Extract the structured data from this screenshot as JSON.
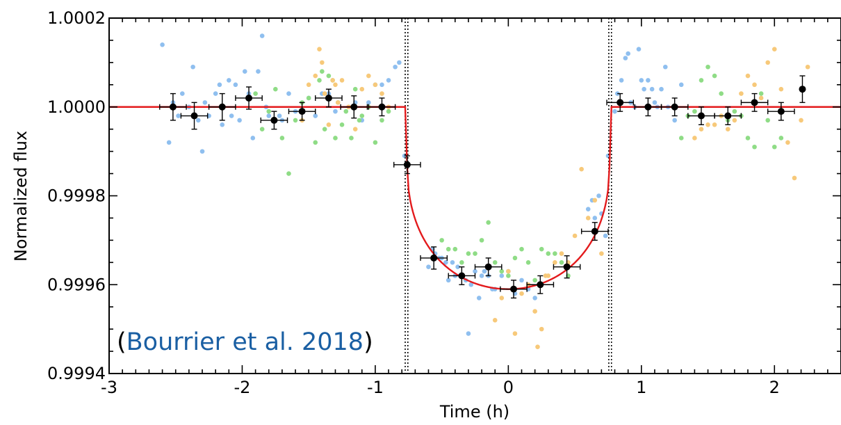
{
  "chart_data": {
    "type": "scatter",
    "title": "",
    "xlabel": "Time (h)",
    "ylabel": "Normalized flux",
    "xlim": [
      -3,
      2.5
    ],
    "ylim": [
      0.9994,
      1.0002
    ],
    "x_ticks": [
      -3,
      -2,
      -1,
      0,
      1,
      2
    ],
    "x_tick_labels": [
      "-3",
      "-2",
      "-1",
      "0",
      "1",
      "2"
    ],
    "y_ticks": [
      0.9994,
      0.9996,
      0.9998,
      1.0
    ],
    "y_tick_labels": [
      "0.9994",
      "0.9996",
      "0.9998",
      "1.0000"
    ],
    "y_top_label": "1.0002",
    "grid": false,
    "legend": "none",
    "annotation": {
      "open": "(",
      "text": "Bourrier et al. 2018",
      "close": ")",
      "text_color": "#1a5fa3"
    },
    "contact_lines_x": [
      -0.775,
      -0.755,
      0.755,
      0.775
    ],
    "model": {
      "color": "#e31a1c",
      "baseline": 1.0,
      "ingress_start": -0.775,
      "ingress_end": -0.76,
      "egress_start": 0.76,
      "egress_end": 0.775,
      "min": 0.99959
    },
    "series": [
      {
        "role": "raw-visit-1",
        "color": "#8fbfef",
        "x": [
          -2.6,
          -2.55,
          -2.52,
          -2.48,
          -2.45,
          -2.4,
          -2.37,
          -2.33,
          -2.3,
          -2.28,
          -2.25,
          -2.2,
          -2.17,
          -2.15,
          -2.1,
          -2.08,
          -2.05,
          -2.02,
          -1.98,
          -1.95,
          -1.92,
          -1.88,
          -1.85,
          -1.82,
          -1.8,
          -1.75,
          -1.72,
          -1.7,
          -1.65,
          -1.6,
          -1.5,
          -1.45,
          -1.4,
          -1.35,
          -1.3,
          -1.2,
          -1.15,
          -1.1,
          -1.05,
          -1.0,
          -0.95,
          -0.9,
          -0.85,
          -0.82,
          -0.78,
          -0.6,
          -0.57,
          -0.55,
          -0.52,
          -0.5,
          -0.47,
          -0.45,
          -0.42,
          -0.4,
          -0.38,
          -0.35,
          -0.32,
          -0.3,
          -0.28,
          -0.25,
          -0.22,
          -0.2,
          -0.18,
          -0.15,
          -0.12,
          -0.1,
          -0.05,
          0.0,
          0.05,
          0.1,
          0.15,
          0.2,
          0.6,
          0.63,
          0.65,
          0.68,
          0.7,
          0.73,
          0.75,
          0.8,
          0.82,
          0.85,
          0.88,
          0.9,
          0.92,
          0.95,
          0.98,
          1.0,
          1.02,
          1.05,
          1.08,
          1.1,
          1.12,
          1.15,
          1.18,
          1.2,
          1.25,
          1.3
        ],
        "y": [
          1.00014,
          0.99992,
          1.00001,
          0.99998,
          1.00003,
          1.0,
          1.00009,
          0.99997,
          0.9999,
          1.00001,
          0.99998,
          1.00003,
          1.00005,
          0.99996,
          1.00006,
          0.99998,
          1.00005,
          0.99997,
          1.00008,
          1.00003,
          0.99993,
          1.00008,
          1.00016,
          1.0,
          0.99998,
          0.99997,
          0.99998,
          0.99997,
          1.00003,
          0.99999,
          1.00002,
          0.99998,
          1.00003,
          1.00003,
          0.99999,
          1.0,
          1.00001,
          0.99997,
          1.00001,
          1.00005,
          1.00005,
          1.00006,
          1.00009,
          1.0001,
          0.99989,
          0.99964,
          0.99968,
          0.99967,
          0.99966,
          0.99966,
          0.99965,
          0.99961,
          0.99965,
          0.99962,
          0.99964,
          0.99962,
          0.99961,
          0.99949,
          0.9996,
          0.99963,
          0.99957,
          0.99962,
          0.99963,
          0.99962,
          0.99959,
          0.99959,
          0.99962,
          0.99963,
          0.99958,
          0.99961,
          0.99959,
          0.99957,
          0.99977,
          0.99979,
          0.99975,
          0.9998,
          0.99976,
          0.99971,
          0.99989,
          0.99999,
          1.00003,
          1.00006,
          1.00011,
          1.00012,
          1.00001,
          1.0,
          1.00013,
          1.00006,
          1.00004,
          1.00006,
          1.00004,
          1.00001,
          1.0,
          1.00004,
          1.00009,
          1.0,
          0.99997,
          1.00005
        ]
      },
      {
        "role": "raw-visit-2",
        "color": "#8fdc86",
        "x": [
          -1.9,
          -1.85,
          -1.8,
          -1.75,
          -1.7,
          -1.65,
          -1.6,
          -1.55,
          -1.5,
          -1.45,
          -1.42,
          -1.4,
          -1.38,
          -1.35,
          -1.32,
          -1.3,
          -1.28,
          -1.25,
          -1.22,
          -1.2,
          -1.18,
          -1.15,
          -1.12,
          -1.1,
          -1.05,
          -1.0,
          -0.95,
          -0.9,
          -0.55,
          -0.5,
          -0.45,
          -0.4,
          -0.35,
          -0.3,
          -0.25,
          -0.2,
          -0.15,
          -0.1,
          -0.05,
          0.0,
          0.05,
          0.1,
          0.15,
          0.2,
          0.25,
          0.3,
          0.35,
          0.4,
          0.45,
          1.3,
          1.35,
          1.4,
          1.45,
          1.5,
          1.55,
          1.6,
          1.65,
          1.7,
          1.75,
          1.8,
          1.85,
          1.9,
          1.95,
          2.0,
          2.05
        ],
        "y": [
          1.00003,
          0.99995,
          0.99999,
          1.00004,
          0.99993,
          0.99985,
          0.99997,
          1.00001,
          1.00002,
          0.99992,
          1.00006,
          1.00008,
          0.99995,
          1.00007,
          1.00006,
          0.99993,
          1.00001,
          0.99996,
          0.99999,
          1.0,
          0.99993,
          1.00004,
          0.99997,
          0.99998,
          1.0,
          0.99992,
          0.99997,
          0.99999,
          0.99966,
          0.9997,
          0.99968,
          0.99968,
          0.99965,
          0.99967,
          0.99967,
          0.9997,
          0.99974,
          0.99965,
          0.99963,
          0.99962,
          0.99966,
          0.99968,
          0.99965,
          0.99961,
          0.99968,
          0.99967,
          0.99967,
          0.99965,
          0.99962,
          0.99993,
          0.99998,
          0.99999,
          1.00006,
          1.00009,
          1.00007,
          1.00003,
          0.99997,
          0.99999,
          0.99998,
          0.99993,
          0.99991,
          1.00003,
          0.99997,
          0.99991,
          0.99993
        ]
      },
      {
        "role": "raw-visit-3",
        "color": "#f7c97a",
        "x": [
          -1.55,
          -1.5,
          -1.45,
          -1.42,
          -1.4,
          -1.38,
          -1.35,
          -1.32,
          -1.3,
          -1.28,
          -1.25,
          -1.2,
          -1.15,
          -1.1,
          -1.05,
          -1.0,
          -0.95,
          -0.9,
          -0.1,
          -0.05,
          0.0,
          0.05,
          0.1,
          0.15,
          0.2,
          0.22,
          0.25,
          0.28,
          0.3,
          0.35,
          0.4,
          0.45,
          0.5,
          0.55,
          0.6,
          0.65,
          0.7,
          1.4,
          1.45,
          1.5,
          1.55,
          1.6,
          1.65,
          1.7,
          1.75,
          1.8,
          1.85,
          1.9,
          1.95,
          2.0,
          2.05,
          2.1,
          2.15,
          2.2,
          2.25
        ],
        "y": [
          0.99997,
          1.00005,
          1.00007,
          1.00013,
          1.0001,
          1.00003,
          0.99996,
          1.00006,
          1.00005,
          1.00001,
          1.00006,
          1.0,
          0.99995,
          1.00004,
          1.00007,
          1.00005,
          1.00003,
          1.0,
          0.99952,
          0.99957,
          0.99963,
          0.99949,
          0.99958,
          0.9996,
          0.99954,
          0.99946,
          0.9995,
          0.99962,
          0.99962,
          0.99965,
          0.99967,
          0.99965,
          0.99971,
          0.99986,
          0.99975,
          0.99979,
          0.99967,
          0.99993,
          0.99995,
          0.99996,
          0.99996,
          0.99998,
          0.99995,
          0.99997,
          1.00003,
          1.00007,
          1.00005,
          1.00002,
          1.0001,
          1.00013,
          1.00004,
          0.99992,
          0.99984,
          0.99997,
          1.00009
        ]
      },
      {
        "role": "binned",
        "color": "#000000",
        "x": [
          -2.52,
          -2.36,
          -2.15,
          -1.95,
          -1.76,
          -1.55,
          -1.35,
          -1.16,
          -0.95,
          -0.76,
          -0.56,
          -0.35,
          -0.15,
          0.04,
          0.24,
          0.44,
          0.65,
          0.84,
          1.05,
          1.25,
          1.45,
          1.65,
          1.85,
          2.05,
          2.21
        ],
        "y": [
          1.0,
          0.99998,
          1.0,
          1.00002,
          0.99997,
          0.99999,
          1.00002,
          1.0,
          1.0,
          0.99987,
          0.99966,
          0.99962,
          0.99964,
          0.99959,
          0.9996,
          0.99964,
          0.99972,
          1.00001,
          1.0,
          1.0,
          0.99998,
          0.99998,
          1.00001,
          0.99999,
          1.00004
        ],
        "xerr": [
          0.1,
          0.1,
          0.1,
          0.1,
          0.1,
          0.1,
          0.1,
          0.1,
          0.1,
          0.1,
          0.1,
          0.1,
          0.1,
          0.1,
          0.1,
          0.1,
          0.1,
          0.1,
          0.1,
          0.1,
          0.1,
          0.1,
          0.1,
          0.1,
          0.0
        ],
        "yerr": [
          3e-05,
          3e-05,
          3e-05,
          2.5e-05,
          2e-05,
          2e-05,
          2e-05,
          2.5e-05,
          2e-05,
          2e-05,
          2.5e-05,
          2e-05,
          2e-05,
          2e-05,
          2e-05,
          2.5e-05,
          2e-05,
          2e-05,
          2e-05,
          2e-05,
          2e-05,
          2e-05,
          2e-05,
          2e-05,
          3e-05
        ]
      }
    ]
  }
}
